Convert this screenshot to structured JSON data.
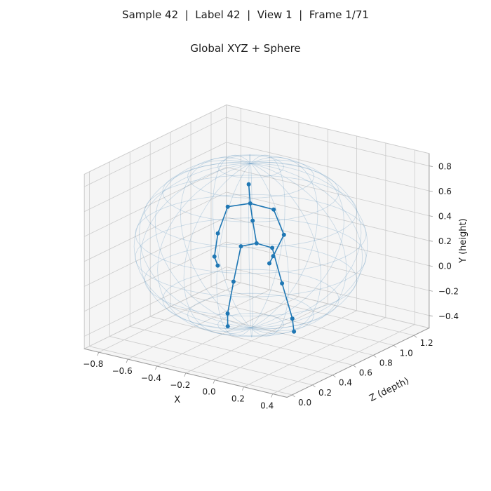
{
  "figure": {
    "suptitle": "Sample 42  |  Label 42  |  View 1  |  Frame 1/71",
    "sample": "42",
    "label": "42",
    "view_number": "1",
    "frame": "1/71"
  },
  "chart_data": {
    "type": "scatter",
    "projection": "3d",
    "title": "Global XYZ + Sphere",
    "view": {
      "elev": 20,
      "azim": -55
    },
    "grid": true,
    "axes": {
      "x": {
        "label": "X",
        "limits": [
          -0.9,
          0.5
        ],
        "ticks": [
          -0.8,
          -0.6,
          -0.4,
          -0.2,
          0,
          0.2,
          0.4
        ],
        "tick_labels": [
          "−0.8",
          "−0.6",
          "−0.4",
          "−0.2",
          "0.0",
          "0.2",
          "0.4"
        ]
      },
      "z_depth": {
        "label": "Z (depth)",
        "limits": [
          -0.05,
          1.35
        ],
        "ticks": [
          0,
          0.2,
          0.4,
          0.6,
          0.8,
          1,
          1.2
        ],
        "tick_labels": [
          "0.0",
          "0.2",
          "0.4",
          "0.6",
          "0.8",
          "1.0",
          "1.2"
        ]
      },
      "y_height": {
        "label": "Y (height)",
        "limits": [
          -0.5,
          0.9
        ],
        "ticks": [
          -0.4,
          -0.2,
          0,
          0.2,
          0.4,
          0.6,
          0.8
        ],
        "tick_labels": [
          "−0.4",
          "−0.2",
          "0.0",
          "0.2",
          "0.4",
          "0.6",
          "0.8"
        ]
      }
    },
    "sphere": {
      "center_xyz": [
        -0.22,
        0.25,
        0.62
      ],
      "radius": 0.66,
      "meridians": 20,
      "parallels": 10,
      "color": "#5b93bd",
      "opacity": 0.3
    },
    "skeleton": {
      "color": "#1f77b4",
      "marker_size": 3,
      "joint_names": [
        "head",
        "neck",
        "l_shoulder",
        "l_elbow",
        "l_wrist",
        "l_hand",
        "r_shoulder",
        "r_elbow",
        "r_wrist",
        "r_hand",
        "spine",
        "pelvis",
        "l_hip",
        "l_knee",
        "l_ankle",
        "l_foot",
        "r_hip",
        "r_knee",
        "r_ankle",
        "r_foot"
      ],
      "joints_xyz": [
        [
          -0.22,
          0.75,
          0.6
        ],
        [
          -0.21,
          0.6,
          0.6
        ],
        [
          -0.33,
          0.56,
          0.55
        ],
        [
          -0.37,
          0.35,
          0.51
        ],
        [
          -0.38,
          0.17,
          0.49
        ],
        [
          -0.35,
          0.11,
          0.48
        ],
        [
          -0.09,
          0.56,
          0.66
        ],
        [
          -0.04,
          0.36,
          0.69
        ],
        [
          -0.1,
          0.18,
          0.67
        ],
        [
          -0.12,
          0.12,
          0.66
        ],
        [
          -0.2,
          0.46,
          0.61
        ],
        [
          -0.18,
          0.28,
          0.62
        ],
        [
          -0.26,
          0.25,
          0.58
        ],
        [
          -0.29,
          -0.03,
          0.55
        ],
        [
          -0.31,
          -0.28,
          0.52
        ],
        [
          -0.26,
          -0.34,
          0.45
        ],
        [
          -0.1,
          0.25,
          0.66
        ],
        [
          -0.06,
          -0.04,
          0.7
        ],
        [
          -0.01,
          -0.32,
          0.73
        ],
        [
          0.05,
          -0.38,
          0.66
        ]
      ],
      "bones": [
        [
          0,
          1
        ],
        [
          1,
          2
        ],
        [
          2,
          3
        ],
        [
          3,
          4
        ],
        [
          4,
          5
        ],
        [
          1,
          6
        ],
        [
          6,
          7
        ],
        [
          7,
          8
        ],
        [
          8,
          9
        ],
        [
          1,
          10
        ],
        [
          10,
          11
        ],
        [
          11,
          12
        ],
        [
          12,
          13
        ],
        [
          13,
          14
        ],
        [
          14,
          15
        ],
        [
          11,
          16
        ],
        [
          16,
          17
        ],
        [
          17,
          18
        ],
        [
          18,
          19
        ]
      ]
    },
    "colors": {
      "pane": "#f5f5f5",
      "grid": "#cccccc",
      "axis_line": "#9a9a9a",
      "tick_text": "#1c1c1c"
    }
  }
}
